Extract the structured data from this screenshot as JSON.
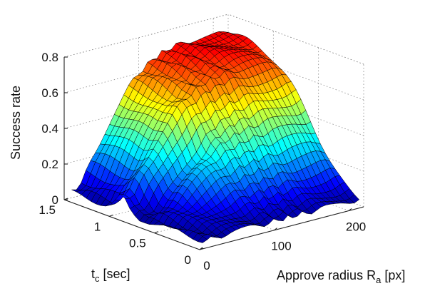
{
  "chart_data": {
    "type": "surface",
    "zlabel": "Success rate",
    "xlabel": {
      "main": "Approve radius R",
      "sub": "a",
      "unit": " [px]"
    },
    "ylabel": {
      "main": "t",
      "sub": "c",
      "unit": " [sec]"
    },
    "x_range": [
      0,
      220
    ],
    "y_range": [
      0,
      1.5
    ],
    "z_range": [
      0,
      0.8
    ],
    "x_ticks": [
      0,
      100,
      200
    ],
    "x_tick_labels": [
      "0",
      "100",
      "200"
    ],
    "y_ticks": [
      0,
      0.5,
      1,
      1.5
    ],
    "y_tick_labels": [
      "0",
      "0.5",
      "1",
      "1.5"
    ],
    "z_ticks": [
      0,
      0.2,
      0.4,
      0.6,
      0.8
    ],
    "z_tick_labels": [
      "0",
      "0.2",
      "0.4",
      "0.6",
      "0.8"
    ],
    "colormap": "jet",
    "grid": true,
    "surface_description": {
      "x_samples": [
        10,
        220
      ],
      "y_samples": [
        0.05,
        1.5
      ],
      "plateau_max": 0.78,
      "low_corner_value": 0.03,
      "high_t_low_r_value": 0.1
    }
  }
}
